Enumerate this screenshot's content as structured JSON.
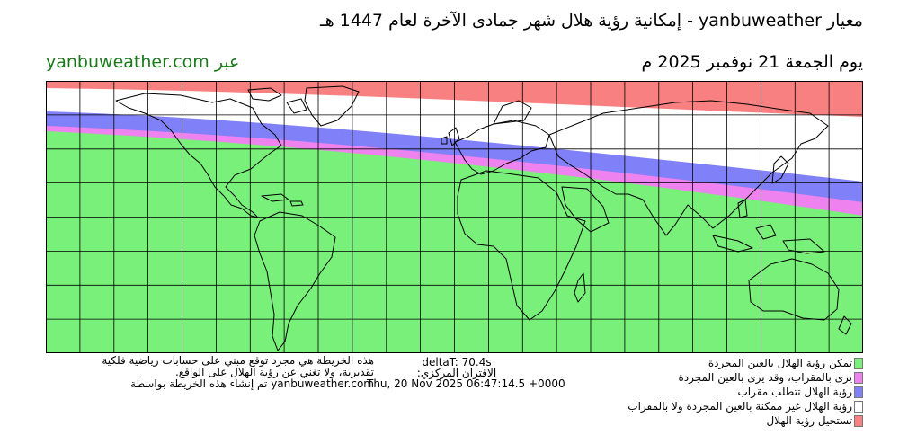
{
  "header": {
    "title": "معيار yanbuweather - إمكانية رؤية هلال شهر جمادى الآخرة لعام 1447 هـ",
    "date": "يوم الجمعة 21 نوفمبر 2025 م",
    "via": "عبر yanbuweather.com"
  },
  "map": {
    "zones": {
      "naked_eye": "#79f079",
      "telescope_then_eye": "#ee82ee",
      "telescope_only": "#8080f8",
      "not_possible": "#ffffff",
      "impossible": "#f88080"
    }
  },
  "disclaimer": {
    "line1": "هذه الخريطة هي مجرد توقع مبني على حسابات رياضية فلكية",
    "line2": "تقديرية، ولا تغني عن رؤية الهلال على الواقع.",
    "line3": "yanbuweather.com تم إنشاء هذه الخريطة بواسطة"
  },
  "stats": {
    "delta_t": "deltaT: 70.4s",
    "conjunction_label": "الاقتران المركزي:",
    "conjunction_time": "Thu, 20 Nov 2025 06:47:14.5 +0000"
  },
  "legend": [
    {
      "label": "تمكن رؤية الهلال بالعين المجردة",
      "color": "#79f079"
    },
    {
      "label": "يرى بالمقراب، وقد يرى بالعين المجردة",
      "color": "#ee82ee"
    },
    {
      "label": "رؤية الهلال تتطلب مقراب",
      "color": "#8080f8"
    },
    {
      "label": "رؤية الهلال غير ممكنة بالعين المجردة ولا بالمقراب",
      "color": "#ffffff"
    },
    {
      "label": "تستحيل رؤية الهلال",
      "color": "#f88080"
    }
  ]
}
